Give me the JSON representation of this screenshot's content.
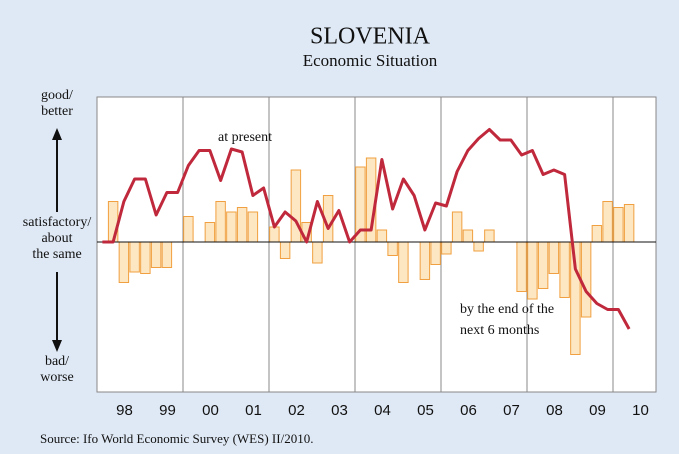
{
  "chart_data": {
    "type": "bar_line",
    "title": "SLOVENIA",
    "subtitle": "Economic Situation",
    "source": "Source: Ifo World Economic Survey (WES) II/2010.",
    "y_labels": {
      "top": [
        "good/",
        "better"
      ],
      "middle": [
        "satisfactory/",
        "about",
        "the same"
      ],
      "bottom": [
        "bad/",
        "worse"
      ]
    },
    "annotations": [
      [
        "at present"
      ],
      [
        "by the end of the",
        "next 6 months"
      ]
    ],
    "xlim": [
      1998,
      2011
    ],
    "ylim": [
      -100,
      100
    ],
    "xticks": [
      {
        "value": 1998.5,
        "label": "98"
      },
      {
        "value": 1999.5,
        "label": "99"
      },
      {
        "value": 2000.5,
        "label": "00"
      },
      {
        "value": 2001.5,
        "label": "01"
      },
      {
        "value": 2002.5,
        "label": "02"
      },
      {
        "value": 2003.5,
        "label": "03"
      },
      {
        "value": 2004.5,
        "label": "04"
      },
      {
        "value": 2005.5,
        "label": "05"
      },
      {
        "value": 2006.5,
        "label": "06"
      },
      {
        "value": 2007.5,
        "label": "07"
      },
      {
        "value": 2008.5,
        "label": "08"
      },
      {
        "value": 2009.5,
        "label": "09"
      },
      {
        "value": 2010.5,
        "label": "10"
      }
    ],
    "xgrid": [
      2000,
      2002,
      2004,
      2006,
      2008,
      2010
    ],
    "x": [
      1998.125,
      1998.375,
      1998.625,
      1998.875,
      1999.125,
      1999.375,
      1999.625,
      1999.875,
      2000.125,
      2000.375,
      2000.625,
      2000.875,
      2001.125,
      2001.375,
      2001.625,
      2001.875,
      2002.125,
      2002.375,
      2002.625,
      2002.875,
      2003.125,
      2003.375,
      2003.625,
      2003.875,
      2004.125,
      2004.375,
      2004.625,
      2004.875,
      2005.125,
      2005.375,
      2005.625,
      2005.875,
      2006.125,
      2006.375,
      2006.625,
      2006.875,
      2007.125,
      2007.375,
      2007.625,
      2007.875,
      2008.125,
      2008.375,
      2008.625,
      2008.875,
      2009.125,
      2009.375,
      2009.625,
      2009.875,
      2010.125,
      2010.375
    ],
    "series": [
      {
        "kind": "line",
        "color": "#c0283c",
        "values": [
          0,
          0,
          27,
          42,
          42,
          18,
          33,
          33,
          51,
          61,
          61,
          41,
          62,
          60,
          31,
          36,
          10,
          20,
          14,
          0,
          27,
          9,
          21,
          0,
          8,
          8,
          55,
          22,
          42,
          31,
          8,
          26,
          24,
          47,
          61,
          69,
          75,
          68,
          68,
          58,
          61,
          45,
          48,
          45,
          -18,
          -33,
          -41,
          -45,
          -45,
          -58
        ]
      },
      {
        "kind": "bar",
        "color": "#fde6c2",
        "stroke": "#f0a040",
        "values": [
          null,
          27,
          -27,
          -20,
          -21,
          -17,
          -17,
          null,
          17,
          null,
          13,
          27,
          20,
          23,
          20,
          null,
          10,
          -11,
          48,
          13,
          -14,
          31,
          null,
          null,
          50,
          56,
          8,
          -9,
          -27,
          null,
          -25,
          -15,
          -8,
          20,
          8,
          -6,
          8,
          null,
          null,
          -33,
          -38,
          -31,
          -21,
          -37,
          -75,
          -50,
          11,
          27,
          23,
          25
        ]
      }
    ]
  }
}
